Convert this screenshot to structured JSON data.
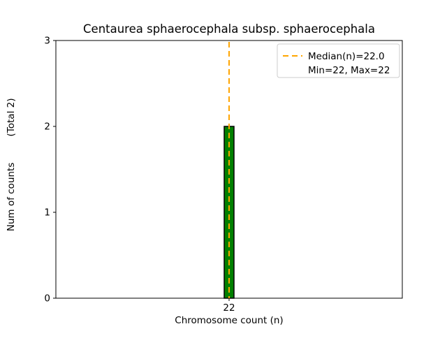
{
  "chart_data": {
    "type": "bar",
    "title": "Centaurea sphaerocephala subsp. sphaerocephala",
    "xlabel": "Chromosome count (n)",
    "ylabel": "Num of counts",
    "ylabel_total": "(Total 2)",
    "categories": [
      "22"
    ],
    "values": [
      2
    ],
    "total_counts": 2,
    "ylim": [
      0,
      3
    ],
    "yticks": [
      0,
      1,
      2,
      3
    ],
    "grid": false,
    "bar_color": "#008000",
    "bar_edge_color": "#000000",
    "median_line": {
      "x": "22",
      "value": 22.0,
      "color": "#ffa500",
      "style": "dashed"
    },
    "legend": {
      "position": "top-right",
      "entries": [
        {
          "symbol": "dashed-line",
          "color": "#ffa500",
          "label": "Median(n)=22.0"
        },
        {
          "symbol": "none",
          "color": "",
          "label": "Min=22, Max=22"
        }
      ]
    }
  }
}
